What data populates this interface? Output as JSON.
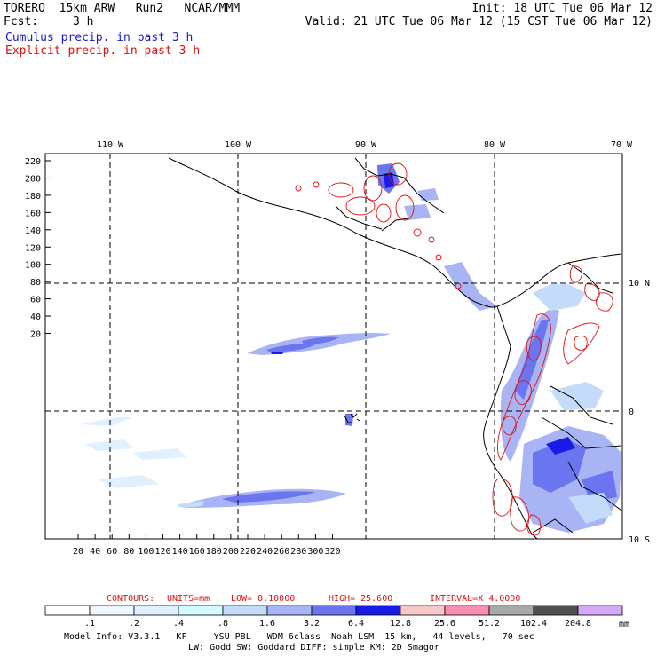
{
  "header": {
    "model_line": "TORERO  15km ARW   Run2   NCAR/MMM",
    "init": "Init: 18 UTC Tue 06 Mar 12",
    "fcst_label": "Fcst:",
    "fcst_hours": "3 h",
    "valid": "Valid: 21 UTC Tue 06 Mar 12 (15 CST Tue 06 Mar 12)",
    "field_cumulus": "Cumulus precip. in past 3 h",
    "field_explicit": "Explicit precip. in past 3 h"
  },
  "colors": {
    "cumulus_text": "#1a1acc",
    "explicit_text": "#dd1111",
    "contour": "#e01010",
    "coast": "#000000",
    "grid": "#000000"
  },
  "map": {
    "top_lon_labels": [
      "110 W",
      "100 W",
      "90 W",
      "80 W",
      "70 W"
    ],
    "right_lat_labels": [
      "10 N",
      "0",
      "10 S"
    ],
    "y_ticks": [
      "220",
      "200",
      "180",
      "160",
      "140",
      "120",
      "100",
      "80",
      "60",
      "40",
      "20"
    ],
    "x_ticks": [
      "20",
      "40",
      "60",
      "80",
      "100",
      "120",
      "140",
      "160",
      "180",
      "200",
      "220",
      "240",
      "260",
      "280",
      "300",
      "320"
    ]
  },
  "contours": {
    "label": "CONTOURS:",
    "units": "UNITS=mm",
    "low": "LOW=  0.10000",
    "high": "HIGH=  25.600",
    "interval": "INTERVAL=X  4.0000"
  },
  "colorbar": {
    "labels": [
      ".1",
      ".2",
      ".4",
      ".8",
      "1.6",
      "3.2",
      "6.4",
      "12.8",
      "25.6",
      "51.2",
      "102.4",
      "204.8"
    ],
    "unit": "mm",
    "colors": [
      "#ffffff",
      "#f0f8ff",
      "#e0f0ff",
      "#d2faff",
      "#c4dcfa",
      "#a8b4f4",
      "#6b75f0",
      "#1a1ae6",
      "#f7c8c8",
      "#f78cb4",
      "#a8a8a8",
      "#505050",
      "#d4a8f4"
    ]
  },
  "footer": {
    "line1": "Model Info: V3.3.1   KF     YSU PBL   WDM 6class  Noah LSM  15 km,   44 levels,   70 sec",
    "line2": "LW: Godd SW: Goddard DIFF: simple KM: 2D Smagor"
  }
}
